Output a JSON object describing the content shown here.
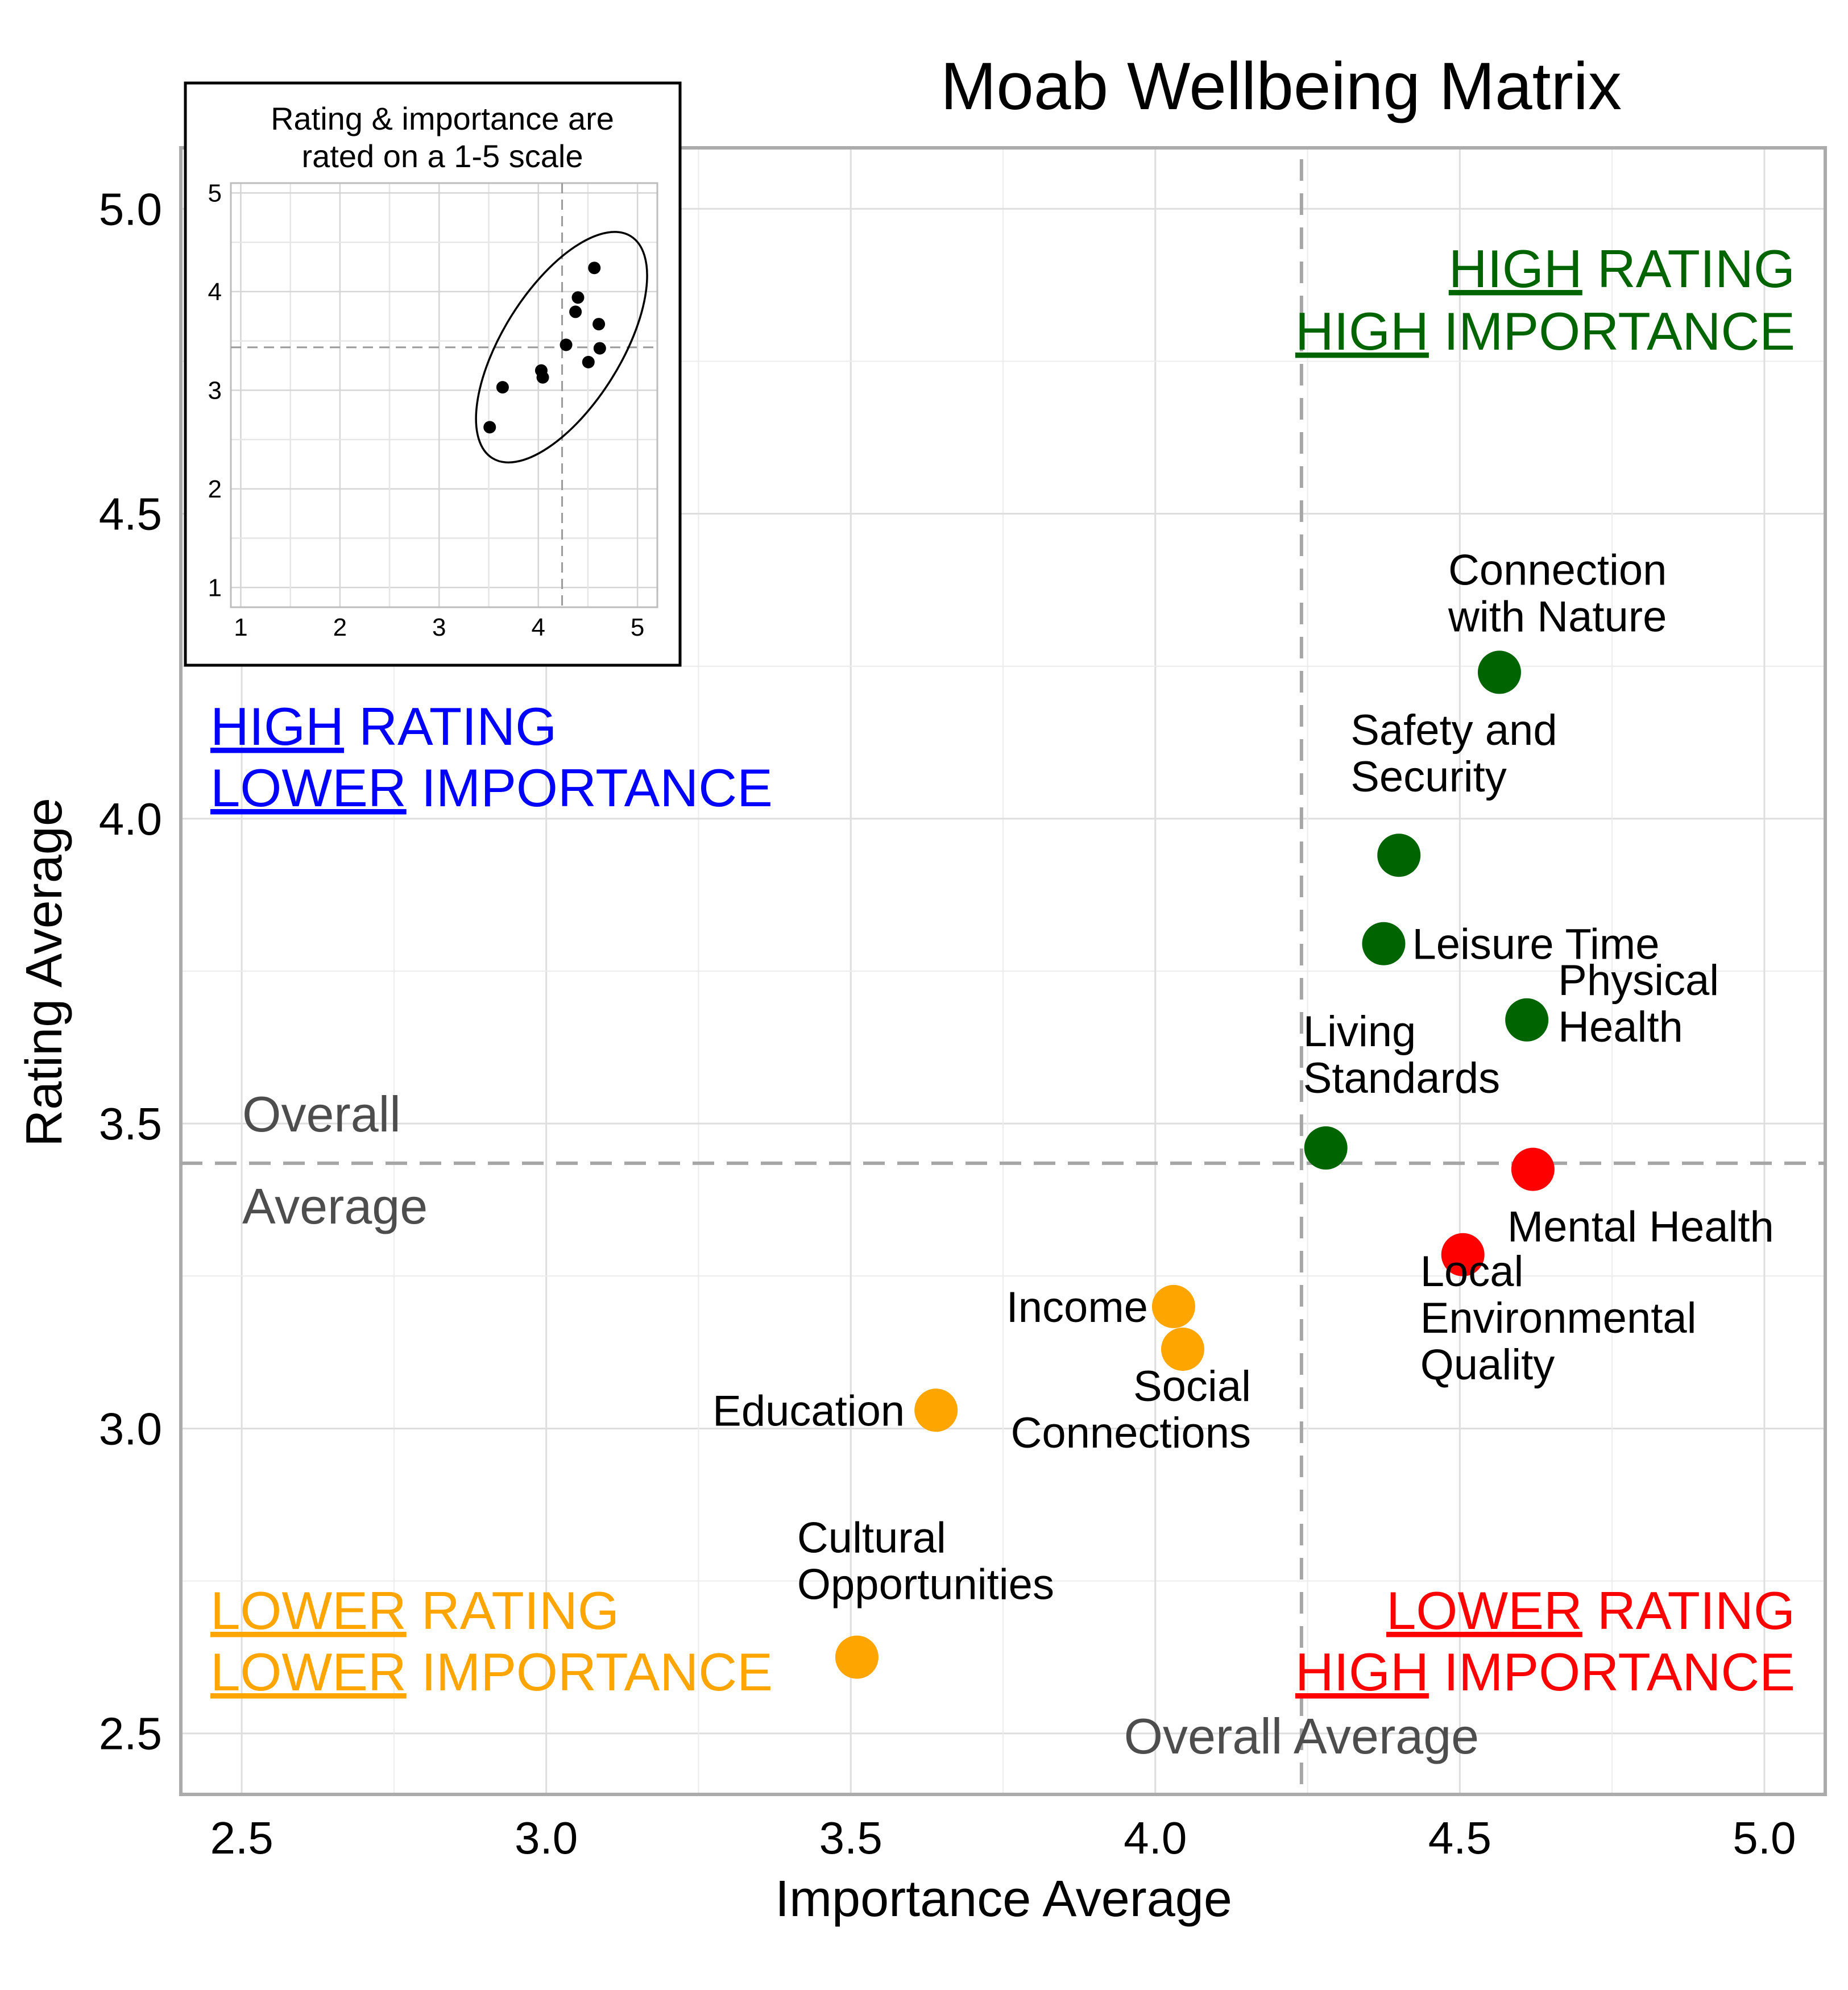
{
  "chart_data": {
    "type": "scatter",
    "title": "Moab Wellbeing Matrix",
    "xlabel": "Importance Average",
    "ylabel": "Rating Average",
    "xlim": [
      2.4,
      5.1
    ],
    "ylim": [
      2.4,
      5.1
    ],
    "xticks": [
      "2.5",
      "3.0",
      "3.5",
      "4.0",
      "4.5",
      "5.0"
    ],
    "yticks": [
      "2.5",
      "3.0",
      "3.5",
      "4.0",
      "4.5",
      "5.0"
    ],
    "grid": true,
    "reference_lines": {
      "overall_importance_average": 4.24,
      "overall_rating_average": 3.435,
      "x_line_label": "Overall Average",
      "y_line_label": [
        "Overall",
        "Average"
      ]
    },
    "points": [
      {
        "label": [
          "Connection",
          "with Nature"
        ],
        "x": 4.565,
        "y": 4.24,
        "color": "#006400",
        "quadrant": "high-high"
      },
      {
        "label": [
          "Safety and",
          "Security"
        ],
        "x": 4.4,
        "y": 3.94,
        "color": "#006400",
        "quadrant": "high-high"
      },
      {
        "label": [
          "Leisure Time"
        ],
        "x": 4.375,
        "y": 3.795,
        "color": "#006400",
        "quadrant": "high-high"
      },
      {
        "label": [
          "Physical",
          "Health"
        ],
        "x": 4.61,
        "y": 3.67,
        "color": "#006400",
        "quadrant": "high-high"
      },
      {
        "label": [
          "Living",
          "Standards"
        ],
        "x": 4.28,
        "y": 3.46,
        "color": "#006400",
        "quadrant": "high-high"
      },
      {
        "label": [
          "Mental Health"
        ],
        "x": 4.62,
        "y": 3.425,
        "color": "#ff0000",
        "quadrant": "low-high"
      },
      {
        "label": [
          "Local",
          "Environmental",
          "Quality"
        ],
        "x": 4.505,
        "y": 3.285,
        "color": "#ff0000",
        "quadrant": "low-high"
      },
      {
        "label": [
          "Income"
        ],
        "x": 4.03,
        "y": 3.2,
        "color": "#ffa500",
        "quadrant": "low-low"
      },
      {
        "label": [
          "Social",
          "Connections"
        ],
        "x": 4.045,
        "y": 3.13,
        "color": "#ffa500",
        "quadrant": "low-low"
      },
      {
        "label": [
          "Education"
        ],
        "x": 3.64,
        "y": 3.03,
        "color": "#ffa500",
        "quadrant": "low-low"
      },
      {
        "label": [
          "Cultural",
          "Opportunities"
        ],
        "x": 3.51,
        "y": 2.625,
        "color": "#ffa500",
        "quadrant": "low-low"
      }
    ],
    "quadrant_labels": [
      {
        "lines": [
          [
            "HIGH",
            " RATING"
          ],
          [
            "HIGH",
            " IMPORTANCE"
          ]
        ],
        "color": "#006400",
        "position": "top-right"
      },
      {
        "lines": [
          [
            "HIGH",
            " RATING"
          ],
          [
            "LOWER",
            " IMPORTANCE"
          ]
        ],
        "color": "#0000ff",
        "position": "top-left"
      },
      {
        "lines": [
          [
            "LOWER",
            " RATING"
          ],
          [
            "LOWER",
            " IMPORTANCE"
          ]
        ],
        "color": "#ffa500",
        "position": "bottom-left"
      },
      {
        "lines": [
          [
            "LOWER",
            " RATING"
          ],
          [
            "HIGH",
            " IMPORTANCE"
          ]
        ],
        "color": "#ff0000",
        "position": "bottom-right"
      }
    ],
    "inset": {
      "title": [
        "Rating & importance are",
        "rated on a 1-5 scale"
      ],
      "xticks": [
        "1",
        "2",
        "3",
        "4",
        "5"
      ],
      "yticks": [
        "1",
        "2",
        "3",
        "4",
        "5"
      ],
      "xlim": [
        0.9,
        5.2
      ],
      "ylim": [
        0.8,
        5.1
      ],
      "ellipse": true
    }
  }
}
